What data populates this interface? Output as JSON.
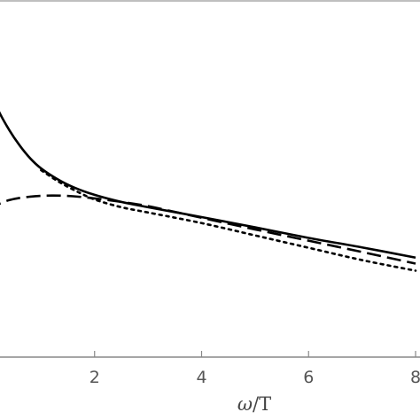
{
  "chart_data": {
    "type": "line",
    "title": "",
    "xlabel_var": "ω",
    "xlabel_rest": "/T",
    "ylabel": "",
    "xlim": [
      0,
      8
    ],
    "ylim": [
      0,
      1
    ],
    "x_ticks": [
      2,
      4,
      6,
      8
    ],
    "x_tick_labels": [
      "2",
      "4",
      "6",
      "8"
    ],
    "grid": false,
    "legend": "none",
    "series": [
      {
        "style": "solid",
        "color": "#000000",
        "x": [
          0.0,
          0.2,
          0.4,
          0.6,
          0.8,
          1.0,
          1.3,
          1.6,
          2.0,
          2.5,
          3.0,
          4.0,
          5.0,
          6.0,
          7.0,
          8.0
        ],
        "y": [
          0.775,
          0.7,
          0.645,
          0.6,
          0.563,
          0.535,
          0.505,
          0.482,
          0.46,
          0.44,
          0.425,
          0.397,
          0.368,
          0.338,
          0.311,
          0.282
        ]
      },
      {
        "style": "dashed",
        "color": "#000000",
        "x": [
          0.0,
          0.4,
          0.8,
          1.2,
          1.6,
          2.0,
          2.5,
          3.0,
          4.0,
          5.0,
          6.0,
          7.0,
          8.0
        ],
        "y": [
          0.42,
          0.445,
          0.455,
          0.458,
          0.456,
          0.45,
          0.44,
          0.428,
          0.395,
          0.362,
          0.33,
          0.298,
          0.265
        ]
      },
      {
        "style": "dotted",
        "color": "#000000",
        "x": [
          1.0,
          1.3,
          1.6,
          2.0,
          2.5,
          3.0,
          4.0,
          5.0,
          6.0,
          7.0,
          8.0
        ],
        "y": [
          0.53,
          0.5,
          0.475,
          0.447,
          0.425,
          0.41,
          0.38,
          0.345,
          0.31,
          0.275,
          0.245
        ]
      }
    ]
  }
}
